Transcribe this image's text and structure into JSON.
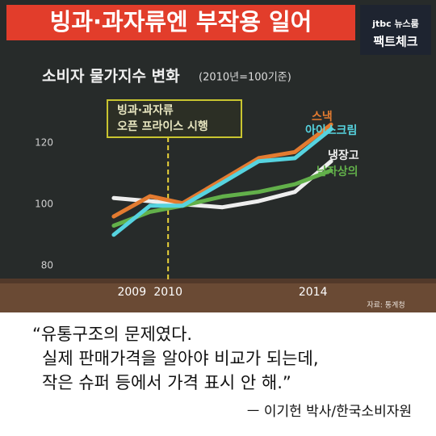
{
  "header": {
    "title": "빙과·과자류엔 부작용 일어",
    "logo": "jtbc 뉴스룸",
    "badge": "팩트체크"
  },
  "chart_data": {
    "type": "line",
    "title": "소비자 물가지수 변화",
    "subtitle": "(2010년=100기준)",
    "x": [
      2008.5,
      2009.5,
      2010.4,
      2011.5,
      2012.5,
      2013.5,
      2014.5
    ],
    "series": [
      {
        "name": "스낵",
        "color": "#e37b30",
        "values": [
          96,
          102.6,
          100.3,
          108,
          115,
          117,
          126
        ]
      },
      {
        "name": "아이스크림",
        "color": "#56d3df",
        "values": [
          90,
          99.5,
          99.5,
          107,
          114,
          115,
          124.5
        ]
      },
      {
        "name": "냉장고",
        "color": "#eeeeee",
        "values": [
          102,
          101,
          100,
          99,
          101,
          104,
          114
        ]
      },
      {
        "name": "남자상의",
        "color": "#62b04a",
        "values": [
          93,
          97.5,
          99.5,
          102.5,
          104,
          106.5,
          111
        ]
      }
    ],
    "xlim": [
      2007.5,
      2015.3
    ],
    "xticks": [
      2009,
      2010,
      2014
    ],
    "ylim": [
      76,
      135
    ],
    "yticks": [
      80,
      100,
      120
    ],
    "annotation": {
      "x": 2010,
      "lines": [
        "빙과·과자류",
        "오픈 프라이스 시행"
      ]
    },
    "source": "자료: 통계청"
  },
  "quote": {
    "lines": [
      "“유통구조의 문제였다.",
      "실제 판매가격을 알아야 비교가 되는데,",
      "작은 슈퍼 등에서 가격 표시 안 해.”"
    ],
    "author": "ㅡ 이기헌 박사/한국소비자원"
  }
}
